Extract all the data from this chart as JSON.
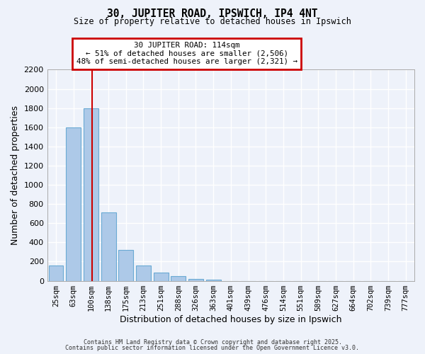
{
  "title": "30, JUPITER ROAD, IPSWICH, IP4 4NT",
  "subtitle": "Size of property relative to detached houses in Ipswich",
  "xlabel": "Distribution of detached houses by size in Ipswich",
  "ylabel": "Number of detached properties",
  "bar_labels": [
    "25sqm",
    "63sqm",
    "100sqm",
    "138sqm",
    "175sqm",
    "213sqm",
    "251sqm",
    "288sqm",
    "326sqm",
    "363sqm",
    "401sqm",
    "439sqm",
    "476sqm",
    "514sqm",
    "551sqm",
    "589sqm",
    "627sqm",
    "664sqm",
    "702sqm",
    "739sqm",
    "777sqm"
  ],
  "bar_values": [
    160,
    1600,
    1800,
    710,
    325,
    160,
    85,
    45,
    20,
    10,
    0,
    0,
    0,
    0,
    0,
    0,
    0,
    0,
    0,
    0,
    0
  ],
  "bar_color": "#adc9e8",
  "bar_edge_color": "#6aaad4",
  "vline_color": "#cc0000",
  "vline_pos": 2.07,
  "ylim": [
    0,
    2200
  ],
  "yticks": [
    0,
    200,
    400,
    600,
    800,
    1000,
    1200,
    1400,
    1600,
    1800,
    2000,
    2200
  ],
  "annotation_text": "30 JUPITER ROAD: 114sqm\n← 51% of detached houses are smaller (2,506)\n48% of semi-detached houses are larger (2,321) →",
  "annotation_box_color": "#cc0000",
  "background_color": "#eef2fa",
  "grid_color": "#ffffff",
  "footer_line1": "Contains HM Land Registry data © Crown copyright and database right 2025.",
  "footer_line2": "Contains public sector information licensed under the Open Government Licence v3.0."
}
